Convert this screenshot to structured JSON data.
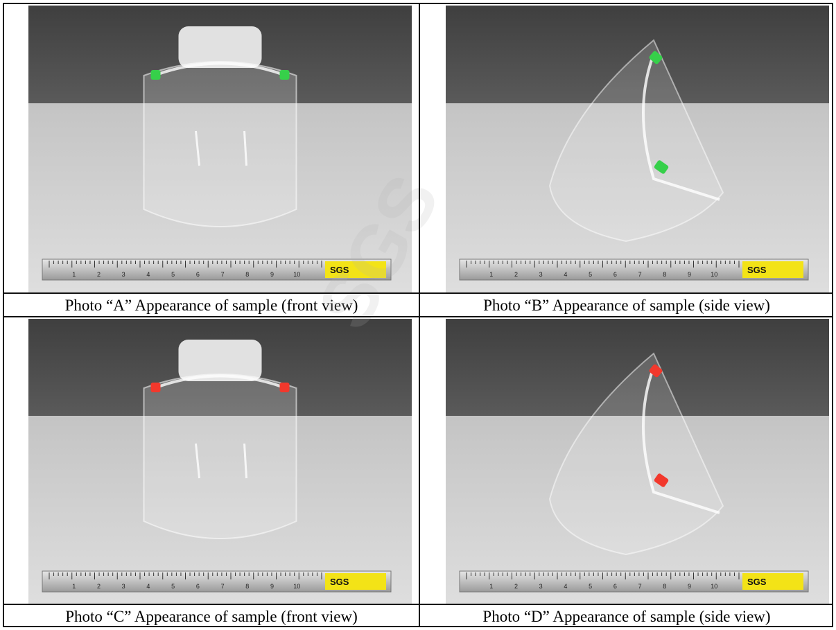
{
  "photos": [
    {
      "id": "A",
      "caption": "Photo “A” Appearance of sample (front view)",
      "view": "front",
      "clip_color": "#36d04a"
    },
    {
      "id": "B",
      "caption": "Photo “B” Appearance of sample (side view)",
      "view": "side",
      "clip_color": "#36d04a"
    },
    {
      "id": "C",
      "caption": "Photo “C” Appearance of sample (front view)",
      "view": "front",
      "clip_color": "#f2382c"
    },
    {
      "id": "D",
      "caption": "Photo “D” Appearance of sample (side view)",
      "view": "side",
      "clip_color": "#f2382c"
    }
  ],
  "ruler": {
    "brand": "SGS",
    "label_color": "#f3e317",
    "ticks": [
      "1",
      "2",
      "3",
      "4",
      "5",
      "6",
      "7",
      "8",
      "9",
      "10"
    ]
  },
  "colors": {
    "backdrop_top": "#4b4b4b",
    "floor": "#d3d3d3",
    "border": "#111111"
  }
}
